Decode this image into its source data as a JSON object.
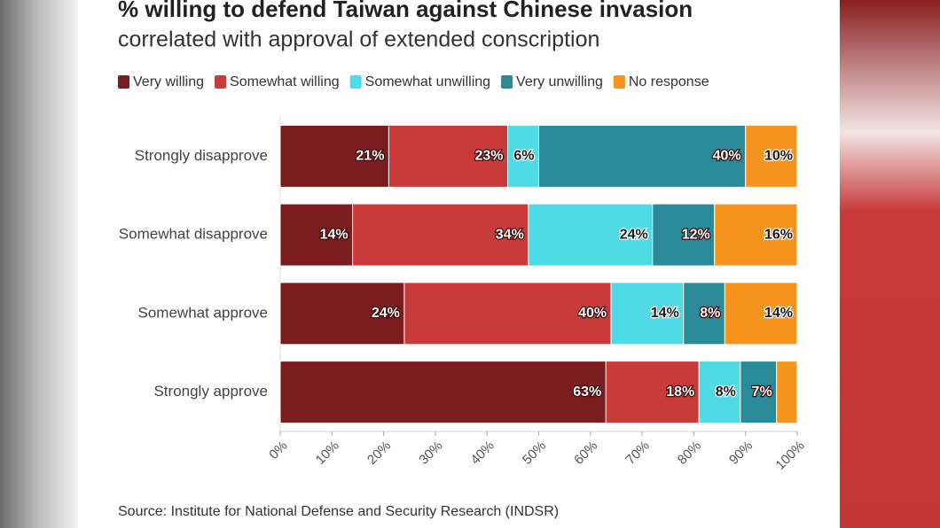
{
  "chart_data": {
    "type": "stacked-barh",
    "title": "% willing to defend Taiwan against Chinese invasion",
    "subtitle": "correlated with approval of extended conscription",
    "categories": [
      "Strongly disapprove",
      "Somewhat disapprove",
      "Somewhat approve",
      "Strongly approve"
    ],
    "series": [
      {
        "name": "Very willing",
        "color": "#7b1c1e",
        "values": [
          21,
          14,
          24,
          63
        ],
        "value_labels": [
          "21%",
          "14%",
          "24%",
          "63%"
        ]
      },
      {
        "name": "Somewhat willing",
        "color": "#c93a3a",
        "values": [
          23,
          34,
          40,
          18
        ],
        "value_labels": [
          "23%",
          "34%",
          "40%",
          "18%"
        ]
      },
      {
        "name": "Somewhat unwilling",
        "color": "#4fdbe6",
        "values": [
          6,
          24,
          14,
          8
        ],
        "value_labels": [
          "6%",
          "24%",
          "14%",
          "8%"
        ]
      },
      {
        "name": "Very unwilling",
        "color": "#2b8a98",
        "values": [
          40,
          12,
          8,
          7
        ],
        "value_labels": [
          "40%",
          "12%",
          "8%",
          "7%"
        ]
      },
      {
        "name": "No response",
        "color": "#f7941d",
        "values": [
          10,
          16,
          14,
          4
        ],
        "value_labels": [
          "10%",
          "16%",
          "14%",
          null
        ]
      }
    ],
    "xlim": [
      0,
      100
    ],
    "xticks": [
      {
        "value": 0,
        "label": "0%"
      },
      {
        "value": 10,
        "label": "10%"
      },
      {
        "value": 20,
        "label": "20%"
      },
      {
        "value": 30,
        "label": "30%"
      },
      {
        "value": 40,
        "label": "40%"
      },
      {
        "value": 50,
        "label": "50%"
      },
      {
        "value": 60,
        "label": "60%"
      },
      {
        "value": 70,
        "label": "70%"
      },
      {
        "value": 80,
        "label": "80%"
      },
      {
        "value": 90,
        "label": "90%"
      },
      {
        "value": 100,
        "label": "100%"
      }
    ],
    "source": "Source: Institute for National Defense and Security Research (INDSR)"
  }
}
